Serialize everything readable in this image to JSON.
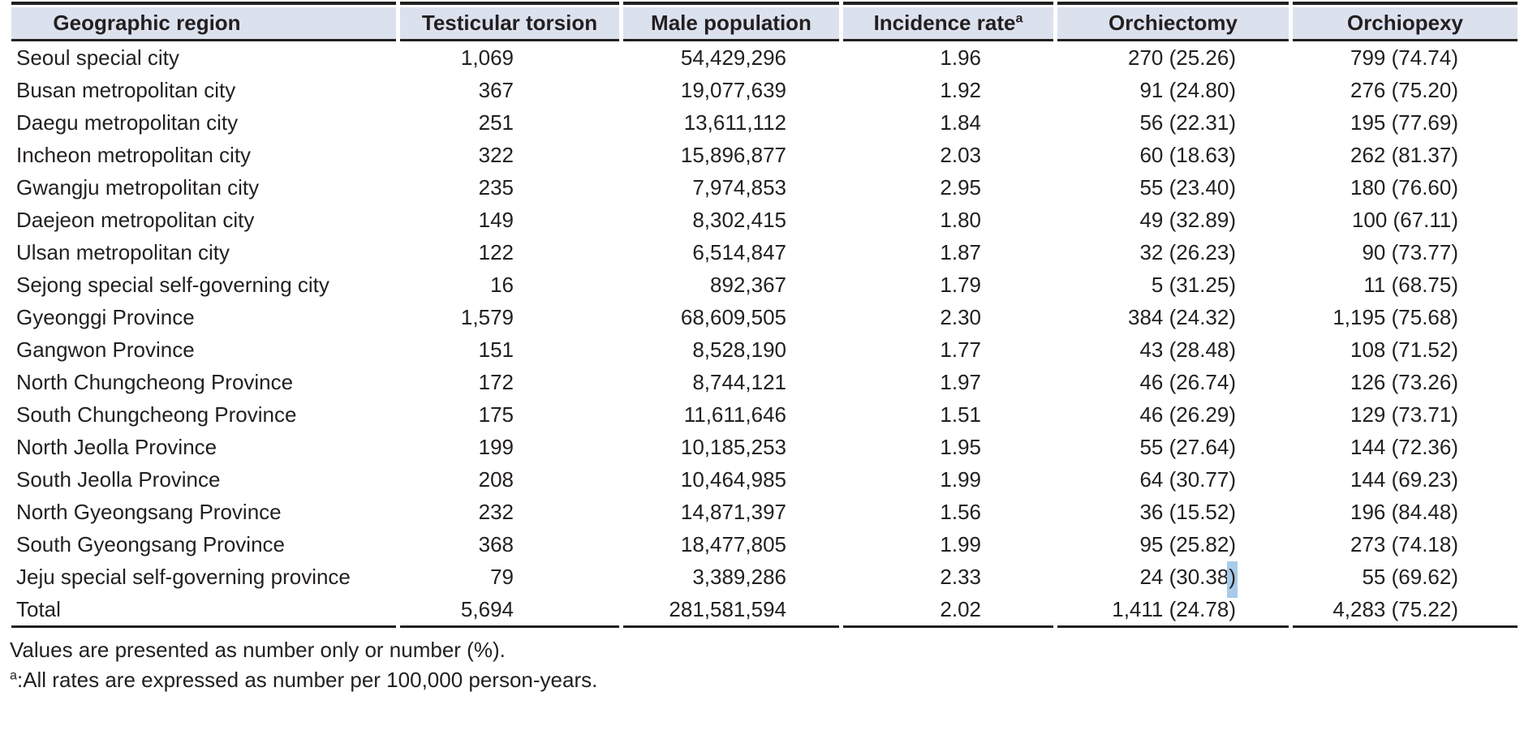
{
  "table": {
    "columns": [
      {
        "label": "Geographic region",
        "superscript": ""
      },
      {
        "label": "Testicular torsion",
        "superscript": ""
      },
      {
        "label": "Male population",
        "superscript": ""
      },
      {
        "label": "Incidence rate",
        "superscript": "a"
      },
      {
        "label": "Orchiectomy",
        "superscript": ""
      },
      {
        "label": "Orchiopexy",
        "superscript": ""
      }
    ],
    "rows": [
      [
        "Seoul special city",
        "1,069",
        "54,429,296",
        "1.96",
        "270 (25.26)",
        "799 (74.74)"
      ],
      [
        "Busan metropolitan city",
        "367",
        "19,077,639",
        "1.92",
        "91 (24.80)",
        "276 (75.20)"
      ],
      [
        "Daegu metropolitan city",
        "251",
        "13,611,112",
        "1.84",
        "56 (22.31)",
        "195 (77.69)"
      ],
      [
        "Incheon metropolitan city",
        "322",
        "15,896,877",
        "2.03",
        "60 (18.63)",
        "262 (81.37)"
      ],
      [
        "Gwangju metropolitan city",
        "235",
        "7,974,853",
        "2.95",
        "55 (23.40)",
        "180 (76.60)"
      ],
      [
        "Daejeon metropolitan city",
        "149",
        "8,302,415",
        "1.80",
        "49 (32.89)",
        "100 (67.11)"
      ],
      [
        "Ulsan metropolitan city",
        "122",
        "6,514,847",
        "1.87",
        "32 (26.23)",
        "90 (73.77)"
      ],
      [
        "Sejong special self-governing city",
        "16",
        "892,367",
        "1.79",
        "5 (31.25)",
        "11 (68.75)"
      ],
      [
        "Gyeonggi Province",
        "1,579",
        "68,609,505",
        "2.30",
        "384 (24.32)",
        "1,195 (75.68)"
      ],
      [
        "Gangwon Province",
        "151",
        "8,528,190",
        "1.77",
        "43 (28.48)",
        "108 (71.52)"
      ],
      [
        "North Chungcheong Province",
        "172",
        "8,744,121",
        "1.97",
        "46 (26.74)",
        "126 (73.26)"
      ],
      [
        "South Chungcheong Province",
        "175",
        "11,611,646",
        "1.51",
        "46 (26.29)",
        "129 (73.71)"
      ],
      [
        "North Jeolla Province",
        "199",
        "10,185,253",
        "1.95",
        "55 (27.64)",
        "144 (72.36)"
      ],
      [
        "South Jeolla Province",
        "208",
        "10,464,985",
        "1.99",
        "64 (30.77)",
        "144 (69.23)"
      ],
      [
        "North Gyeongsang Province",
        "232",
        "14,871,397",
        "1.56",
        "36 (15.52)",
        "196 (84.48)"
      ],
      [
        "South Gyeongsang Province",
        "368",
        "18,477,805",
        "1.99",
        "95 (25.82)",
        "273 (74.18)"
      ],
      [
        "Jeju special self-governing province",
        "79",
        "3,389,286",
        "2.33",
        "24 (30.38)",
        "55 (69.62)"
      ],
      [
        "Total",
        "5,694",
        "281,581,594",
        "2.02",
        "1,411 (24.78)",
        "4,283 (75.22)"
      ]
    ]
  },
  "selection": {
    "row_index": 16,
    "col_index": 4,
    "text": ")"
  },
  "footnotes": [
    {
      "superscript": "",
      "text": "Values are presented as number only or number (%)."
    },
    {
      "superscript": "a",
      "text": ":All rates are expressed as number per 100,000 person-years."
    }
  ],
  "colors": {
    "text": "#231f20",
    "header_background": "#dce1ee",
    "rule": "#231f20",
    "selection_highlight": "#a7cbe8"
  }
}
